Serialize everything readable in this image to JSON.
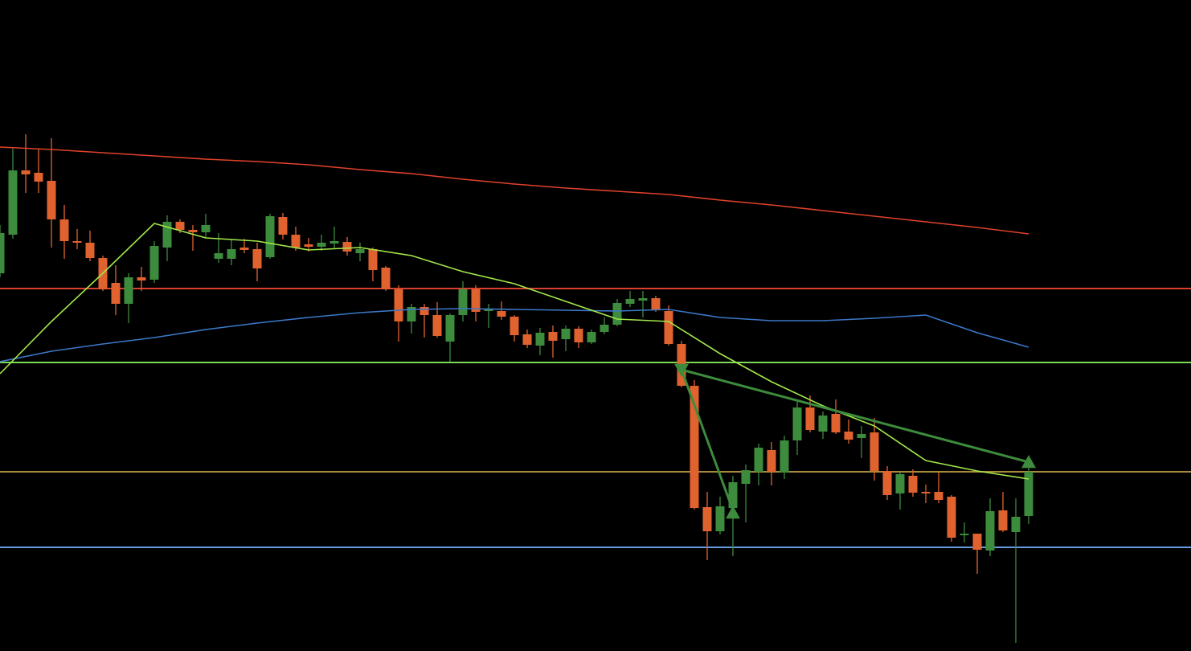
{
  "chart_data": {
    "type": "candlestick",
    "xlim": [
      0,
      92.625
    ],
    "ylim": [
      0,
      810
    ],
    "up_color": "#3d8b3d",
    "down_color": "#e0622f",
    "open": [
      470,
      518,
      598,
      595,
      585,
      537,
      510,
      508,
      489,
      458,
      432,
      465,
      462,
      502,
      534,
      524,
      521,
      488,
      488,
      502,
      500,
      490,
      540,
      518,
      506,
      503,
      507,
      509,
      495,
      500,
      477,
      450,
      410,
      428,
      418,
      385,
      418,
      450,
      423,
      423,
      416,
      394,
      380,
      397,
      388,
      401,
      384,
      397,
      406,
      432,
      436,
      439,
      423,
      382,
      330,
      179,
      149,
      178,
      208,
      223,
      250,
      222,
      262,
      303,
      273,
      295,
      273,
      265,
      272,
      224,
      196,
      218,
      198,
      198,
      192,
      144,
      146,
      125,
      175,
      148,
      168
    ],
    "high": [
      530,
      625,
      643,
      625,
      638,
      555,
      525,
      523,
      492,
      480,
      470,
      478,
      510,
      542,
      537,
      530,
      544,
      520,
      512,
      513,
      508,
      544,
      545,
      528,
      514,
      518,
      528,
      515,
      508,
      502,
      479,
      455,
      432,
      432,
      434,
      420,
      460,
      455,
      432,
      435,
      418,
      400,
      402,
      405,
      405,
      404,
      400,
      415,
      438,
      448,
      448,
      442,
      430,
      386,
      337,
      198,
      192,
      218,
      232,
      258,
      260,
      268,
      310,
      318,
      298,
      313,
      288,
      280,
      290,
      230,
      222,
      226,
      207,
      222,
      194,
      160,
      146,
      190,
      198,
      190,
      237
    ],
    "low": [
      465,
      513,
      570,
      570,
      502,
      488,
      500,
      485,
      448,
      418,
      408,
      448,
      458,
      485,
      520,
      498,
      515,
      483,
      480,
      495,
      460,
      488,
      512,
      498,
      497,
      498,
      500,
      492,
      485,
      460,
      448,
      385,
      395,
      390,
      390,
      360,
      410,
      410,
      402,
      412,
      385,
      377,
      368,
      365,
      373,
      377,
      382,
      394,
      404,
      428,
      415,
      422,
      380,
      328,
      176,
      113,
      145,
      118,
      160,
      206,
      206,
      214,
      244,
      272,
      264,
      270,
      258,
      240,
      212,
      188,
      176,
      192,
      184,
      184,
      136,
      135,
      96,
      118,
      148,
      10,
      158
    ],
    "close": [
      520,
      598,
      593,
      584,
      537,
      510,
      508,
      489,
      450,
      432,
      465,
      461,
      504,
      534,
      524,
      521,
      530,
      495,
      500,
      499,
      476,
      541,
      518,
      502,
      503,
      508,
      510,
      497,
      500,
      474,
      450,
      410,
      428,
      418,
      392,
      418,
      450,
      422,
      426,
      416,
      393,
      381,
      396,
      386,
      401,
      384,
      397,
      406,
      433,
      438,
      439,
      425,
      382,
      330,
      178,
      149,
      180,
      210,
      225,
      253,
      223,
      262,
      303,
      275,
      293,
      272,
      263,
      270,
      224,
      194,
      220,
      197,
      196,
      188,
      141,
      146,
      126,
      174,
      150,
      167,
      223
    ],
    "series": [
      {
        "color": "#e0412b",
        "x": [
          0,
          4,
          8,
          12,
          16,
          20,
          24,
          28,
          32,
          36,
          40,
          44,
          48,
          52,
          56,
          60,
          64,
          68,
          72,
          76,
          80
        ],
        "values": [
          627,
          624,
          620,
          616,
          612,
          609,
          605,
          599,
          594,
          587,
          581,
          576,
          572,
          568,
          561,
          555,
          548,
          541,
          534,
          527,
          519
        ]
      },
      {
        "color": "#3b78c8",
        "x": [
          0,
          4,
          8,
          12,
          16,
          20,
          24,
          28,
          32,
          36,
          40,
          44,
          48,
          52,
          56,
          60,
          64,
          68,
          72,
          76,
          80
        ],
        "values": [
          360,
          373,
          382,
          390,
          400,
          408,
          415,
          421,
          425,
          426,
          425,
          424,
          423,
          425,
          415,
          411,
          411,
          414,
          418,
          396,
          378
        ]
      },
      {
        "color": "#a3e84a",
        "x": [
          0,
          4,
          8,
          12,
          16,
          20,
          24,
          28,
          32,
          36,
          40,
          44,
          48,
          52,
          56,
          60,
          64,
          68,
          72,
          76,
          80
        ],
        "values": [
          345,
          410,
          470,
          532,
          514,
          510,
          499,
          502,
          492,
          472,
          457,
          435,
          413,
          410,
          370,
          335,
          305,
          280,
          237,
          224,
          214
        ]
      }
    ],
    "levels": [
      {
        "value": 451,
        "color": "#d9402f"
      },
      {
        "value": 359,
        "color": "#7ed957"
      },
      {
        "value": 223,
        "color": "#a8893a"
      },
      {
        "value": 129,
        "color": "#6a9ae0"
      }
    ],
    "trend_color": "#3d8b3d",
    "trend_lines": [
      {
        "x": [
          53,
          57
        ],
        "values": [
          350,
          175
        ]
      },
      {
        "x": [
          53,
          80
        ],
        "values": [
          350,
          235
        ]
      }
    ],
    "markers": {
      "down": {
        "x": [
          53
        ],
        "values": [
          350
        ]
      },
      "up": {
        "x": [
          57,
          80
        ],
        "values": [
          172,
          235
        ]
      }
    }
  }
}
